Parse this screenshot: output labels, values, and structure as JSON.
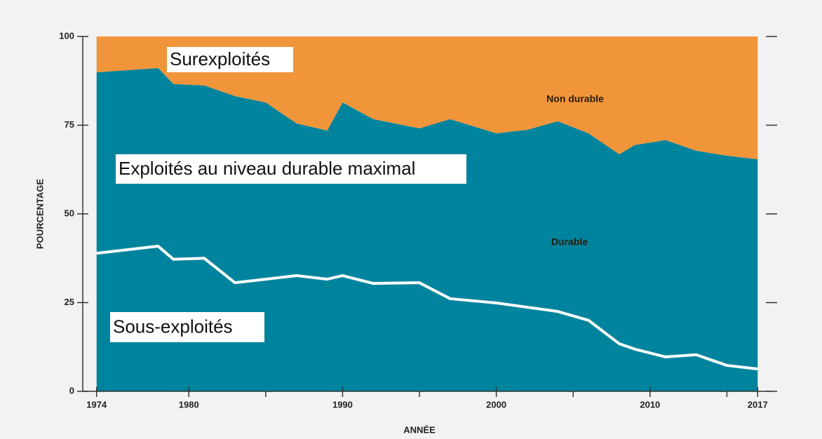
{
  "chart_data": {
    "type": "stacked_area",
    "x": [
      1974,
      1978,
      1979,
      1981,
      1983,
      1985,
      1987,
      1989,
      1990,
      1992,
      1995,
      1997,
      2000,
      2002,
      2004,
      2006,
      2008,
      2009,
      2011,
      2013,
      2015,
      2017
    ],
    "series": [
      {
        "name": "Sous-exploités",
        "color": "#00849d",
        "line_color": "#ffffff",
        "values": [
          38.9,
          40.9,
          37.2,
          37.5,
          30.6,
          31.6,
          32.6,
          31.6,
          32.6,
          30.4,
          30.6,
          26.1,
          24.9,
          23.7,
          22.5,
          20.0,
          13.4,
          11.9,
          9.7,
          10.3,
          7.3,
          6.3
        ]
      },
      {
        "name": "Exploités au niveau durable maximal",
        "color": "#00849d",
        "values": [
          51.0,
          50.2,
          49.4,
          48.7,
          52.6,
          49.8,
          42.9,
          41.9,
          48.8,
          46.3,
          43.5,
          50.6,
          47.8,
          50.0,
          53.6,
          52.7,
          53.4,
          57.5,
          61.1,
          57.5,
          59.1,
          59.1
        ]
      },
      {
        "name": "Surexploités",
        "color": "#f0953a",
        "values": [
          10.1,
          8.9,
          13.4,
          13.8,
          16.8,
          18.6,
          24.5,
          26.5,
          18.6,
          23.3,
          25.9,
          23.3,
          27.3,
          26.3,
          23.9,
          27.3,
          33.2,
          30.6,
          29.2,
          32.2,
          33.6,
          34.6
        ]
      }
    ],
    "annotations": [
      "Non durable",
      "Durable"
    ],
    "xlabel": "ANNÉE",
    "ylabel": "POURCENTAGE",
    "xlim": [
      1973.1,
      2017.9
    ],
    "xticks": [
      1974,
      1980,
      1990,
      2000,
      2010,
      2017
    ],
    "xminorticks": [
      1985,
      1995,
      2005,
      2015
    ],
    "ylim": [
      0,
      100
    ],
    "yticks": [
      0,
      25,
      50,
      75,
      100
    ]
  }
}
